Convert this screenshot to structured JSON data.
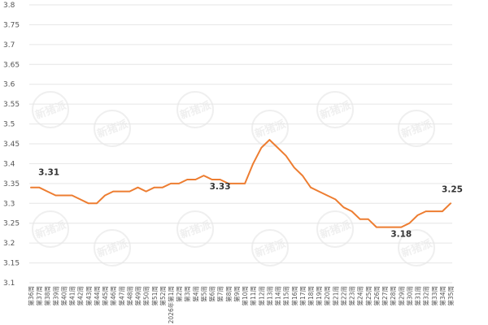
{
  "chart_data": {
    "type": "line",
    "title": "",
    "xlabel": "",
    "ylabel": "",
    "ylim": [
      3.1,
      3.8
    ],
    "yticks": [
      "3.1",
      "3.15",
      "3.2",
      "3.25",
      "3.3",
      "3.35",
      "3.4",
      "3.45",
      "3.5",
      "3.55",
      "3.6",
      "3.65",
      "3.7",
      "3.75",
      "3.8"
    ],
    "grid": true,
    "color": "#ED7D31",
    "categories": [
      "第36周",
      "第37周",
      "第38周",
      "第39周",
      "第40周",
      "第41周",
      "第42周",
      "第43周",
      "第44周",
      "第45周",
      "第46周",
      "第47周",
      "第48周",
      "第49周",
      "第50周",
      "第51周",
      "第52周",
      "2026年第1周",
      "第2周",
      "第3周",
      "第4周",
      "第5周",
      "第6周",
      "第7周",
      "第8周",
      "第9周",
      "第10周",
      "第11周",
      "第12周",
      "第13周",
      "第14周",
      "第15周",
      "第16周",
      "第17周",
      "第18周",
      "第19周",
      "第20周",
      "第21周",
      "第22周",
      "第23周",
      "第24周",
      "第25周",
      "第26周",
      "第27周",
      "第28周",
      "第29周",
      "第30周",
      "第31周",
      "第32周",
      "第33周",
      "第34周",
      "第35周"
    ],
    "values": [
      3.34,
      3.34,
      3.33,
      3.32,
      3.32,
      3.32,
      3.31,
      3.3,
      3.3,
      3.32,
      3.33,
      3.33,
      3.33,
      3.34,
      3.33,
      3.34,
      3.34,
      3.35,
      3.35,
      3.36,
      3.36,
      3.37,
      3.36,
      3.36,
      3.35,
      3.35,
      3.35,
      3.4,
      3.44,
      3.46,
      3.44,
      3.42,
      3.39,
      3.37,
      3.34,
      3.33,
      3.32,
      3.31,
      3.29,
      3.28,
      3.26,
      3.26,
      3.24,
      3.24,
      3.24,
      3.24,
      3.25,
      3.27,
      3.28,
      3.28,
      3.28,
      3.3
    ],
    "annotations": [
      {
        "index": 1,
        "text": "3.31"
      },
      {
        "index": 22,
        "text": "3.33"
      },
      {
        "index": 45,
        "text": "3.18"
      },
      {
        "index": 51,
        "text": "3.25"
      }
    ]
  },
  "watermark": "新猪派"
}
